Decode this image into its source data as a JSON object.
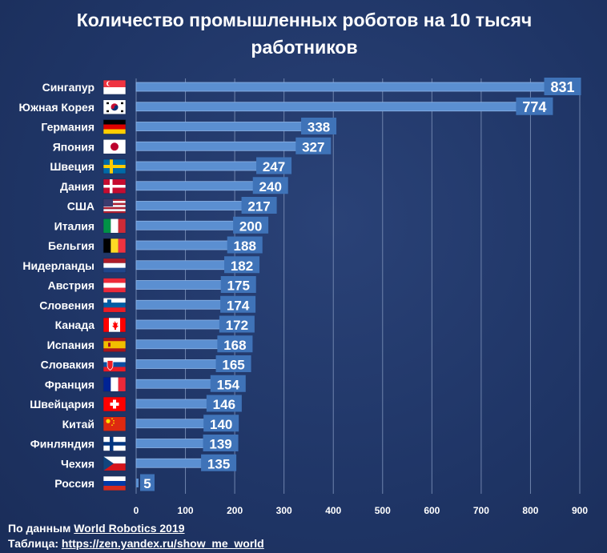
{
  "chart_data": {
    "type": "bar",
    "orientation": "horizontal",
    "title": "Количество промышленных роботов на 10 тысяч работников",
    "xlabel": "",
    "ylabel": "",
    "xlim": [
      0,
      900
    ],
    "xticks": [
      0,
      100,
      200,
      300,
      400,
      500,
      600,
      700,
      800,
      900
    ],
    "grid": true,
    "categories": [
      "Сингапур",
      "Южная Корея",
      "Германия",
      "Япония",
      "Швеция",
      "Дания",
      "США",
      "Италия",
      "Бельгия",
      "Нидерланды",
      "Австрия",
      "Словения",
      "Канада",
      "Испания",
      "Словакия",
      "Франция",
      "Швейцария",
      "Китай",
      "Финляндия",
      "Чехия",
      "Россия"
    ],
    "flags": [
      "singapore-flag-icon",
      "south-korea-flag-icon",
      "germany-flag-icon",
      "japan-flag-icon",
      "sweden-flag-icon",
      "denmark-flag-icon",
      "usa-flag-icon",
      "italy-flag-icon",
      "belgium-flag-icon",
      "netherlands-flag-icon",
      "austria-flag-icon",
      "slovenia-flag-icon",
      "canada-flag-icon",
      "spain-flag-icon",
      "slovakia-flag-icon",
      "france-flag-icon",
      "switzerland-flag-icon",
      "china-flag-icon",
      "finland-flag-icon",
      "czech-flag-icon",
      "russia-flag-icon"
    ],
    "values": [
      831,
      774,
      338,
      327,
      247,
      240,
      217,
      200,
      188,
      182,
      175,
      174,
      172,
      168,
      165,
      154,
      146,
      140,
      139,
      135,
      5
    ],
    "colors": {
      "background": "#1f3566",
      "bar": "#5b8fd1",
      "bar_highlight": "#8fb6e8",
      "label_box": "#3f73b8",
      "grid": "#6f84ad",
      "text": "#ffffff"
    }
  },
  "source": {
    "line1_prefix": "По данным",
    "line1_link": "World Robotics 2019",
    "line2_prefix": "Таблица:",
    "line2_link": "https://zen.yandex.ru/show_me_world"
  }
}
